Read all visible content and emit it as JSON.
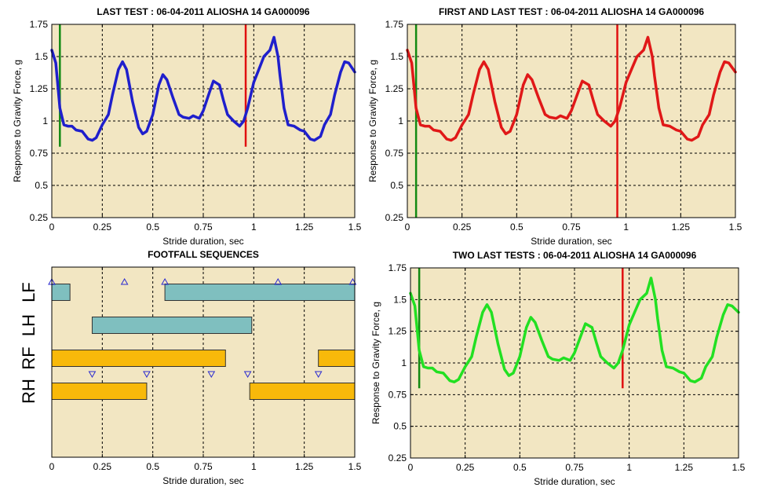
{
  "chart_data": [
    {
      "type": "line",
      "title": "LAST TEST : 06-04-2011 ALIOSHA 14 GA000096",
      "xlabel": "Stride duration, sec",
      "ylabel": "Response to Gravity Force, g",
      "xlim": [
        0,
        1.5
      ],
      "ylim": [
        0.25,
        1.75
      ],
      "xticks": [
        "0",
        "0.25",
        "0.5",
        "0.75",
        "1",
        "1.25",
        "1.5"
      ],
      "yticks": [
        "0.25",
        "0.5",
        "0.75",
        "1",
        "1.25",
        "1.5",
        "1.75"
      ],
      "grid": true,
      "background": "#f2e6c2",
      "series": [
        {
          "color": "#1f1fcc",
          "x": [
            0,
            0.02,
            0.04,
            0.06,
            0.08,
            0.1,
            0.12,
            0.15,
            0.18,
            0.2,
            0.22,
            0.25,
            0.28,
            0.3,
            0.33,
            0.35,
            0.37,
            0.4,
            0.43,
            0.45,
            0.47,
            0.5,
            0.53,
            0.55,
            0.57,
            0.6,
            0.63,
            0.65,
            0.68,
            0.7,
            0.73,
            0.75,
            0.78,
            0.8,
            0.83,
            0.85,
            0.87,
            0.9,
            0.93,
            0.95,
            0.97,
            1,
            1.03,
            1.05,
            1.08,
            1.1,
            1.12,
            1.13,
            1.15,
            1.17,
            1.2,
            1.23,
            1.25,
            1.28,
            1.3,
            1.33,
            1.35,
            1.38,
            1.4,
            1.43,
            1.45,
            1.47,
            1.5
          ],
          "y": [
            1.55,
            1.45,
            1.1,
            0.97,
            0.96,
            0.96,
            0.93,
            0.92,
            0.86,
            0.85,
            0.87,
            0.97,
            1.05,
            1.2,
            1.4,
            1.46,
            1.4,
            1.15,
            0.95,
            0.9,
            0.92,
            1.05,
            1.28,
            1.36,
            1.32,
            1.18,
            1.05,
            1.03,
            1.02,
            1.04,
            1.02,
            1.08,
            1.22,
            1.31,
            1.28,
            1.16,
            1.05,
            1.0,
            0.96,
            1.0,
            1.1,
            1.3,
            1.42,
            1.5,
            1.55,
            1.65,
            1.5,
            1.35,
            1.1,
            0.97,
            0.96,
            0.93,
            0.92,
            0.86,
            0.85,
            0.88,
            0.97,
            1.05,
            1.2,
            1.38,
            1.46,
            1.45,
            1.38
          ]
        }
      ],
      "markers": [
        {
          "x": 0.04,
          "y_range": [
            0.8,
            1.75
          ],
          "color": "#128a12"
        },
        {
          "x": 0.96,
          "y_range": [
            0.8,
            1.75
          ],
          "color": "#e01010"
        }
      ]
    },
    {
      "type": "line",
      "title": "FIRST AND LAST TEST : 06-04-2011 ALIOSHA 14 GA000096",
      "xlabel": "Stride duration, sec",
      "ylabel": "Response to Gravity Force, g",
      "xlim": [
        0,
        1.5
      ],
      "ylim": [
        0.25,
        1.75
      ],
      "xticks": [
        "0",
        "0.25",
        "0.5",
        "0.75",
        "1",
        "1.25",
        "1.5"
      ],
      "yticks": [
        "0.25",
        "0.5",
        "0.75",
        "1",
        "1.25",
        "1.5",
        "1.75"
      ],
      "grid": true,
      "background": "#f2e6c2",
      "series": [
        {
          "color": "#e01818",
          "x": [
            0,
            0.02,
            0.04,
            0.06,
            0.08,
            0.1,
            0.12,
            0.15,
            0.18,
            0.2,
            0.22,
            0.25,
            0.28,
            0.3,
            0.33,
            0.35,
            0.37,
            0.4,
            0.43,
            0.45,
            0.47,
            0.5,
            0.53,
            0.55,
            0.57,
            0.6,
            0.63,
            0.65,
            0.68,
            0.7,
            0.73,
            0.75,
            0.78,
            0.8,
            0.83,
            0.85,
            0.87,
            0.9,
            0.93,
            0.95,
            0.97,
            1,
            1.03,
            1.05,
            1.08,
            1.1,
            1.12,
            1.13,
            1.15,
            1.17,
            1.2,
            1.23,
            1.25,
            1.28,
            1.3,
            1.33,
            1.35,
            1.38,
            1.4,
            1.43,
            1.45,
            1.47,
            1.5
          ],
          "y": [
            1.55,
            1.45,
            1.1,
            0.97,
            0.96,
            0.96,
            0.93,
            0.92,
            0.86,
            0.85,
            0.87,
            0.97,
            1.05,
            1.2,
            1.4,
            1.46,
            1.4,
            1.15,
            0.95,
            0.9,
            0.92,
            1.05,
            1.28,
            1.36,
            1.32,
            1.18,
            1.05,
            1.03,
            1.02,
            1.04,
            1.02,
            1.08,
            1.22,
            1.31,
            1.28,
            1.16,
            1.05,
            1.0,
            0.96,
            1.0,
            1.1,
            1.3,
            1.42,
            1.5,
            1.55,
            1.65,
            1.5,
            1.35,
            1.1,
            0.97,
            0.96,
            0.93,
            0.92,
            0.86,
            0.85,
            0.88,
            0.97,
            1.05,
            1.2,
            1.38,
            1.46,
            1.45,
            1.38
          ]
        }
      ],
      "markers": [
        {
          "x": 0.04,
          "y_range": [
            0.25,
            1.75
          ],
          "color": "#128a12"
        },
        {
          "x": 0.96,
          "y_range": [
            0.25,
            1.75
          ],
          "color": "#e01010"
        }
      ]
    },
    {
      "type": "gantt",
      "title": "FOOTFALL SEQUENCES",
      "xlabel": "Stride duration, sec",
      "xlim": [
        0,
        1.5
      ],
      "xticks": [
        "0",
        "0.25",
        "0.5",
        "0.75",
        "1",
        "1.25",
        "1.5"
      ],
      "grid": true,
      "background": "#f2e6c2",
      "rows": [
        {
          "label": "LF",
          "bars": [
            [
              0,
              0.09
            ],
            [
              0.56,
              1.5
            ]
          ],
          "color": "#7fbfbf"
        },
        {
          "label": "LH",
          "bars": [
            [
              0.2,
              0.99
            ]
          ],
          "color": "#7fbfbf"
        },
        {
          "label": "RF",
          "bars": [
            [
              0,
              0.86
            ],
            [
              1.32,
              1.5
            ]
          ],
          "color": "#f8b90a"
        },
        {
          "label": "RH",
          "bars": [
            [
              0,
              0.47
            ],
            [
              0.98,
              1.5
            ]
          ],
          "color": "#f8b90a"
        }
      ],
      "markers_up": [
        0.0,
        0.36,
        0.56,
        1.12,
        1.49
      ],
      "markers_down": [
        0.2,
        0.47,
        0.79,
        0.97,
        1.32
      ]
    },
    {
      "type": "line",
      "title": "TWO LAST TESTS : 06-04-2011 ALIOSHA 14 GA000096",
      "xlabel": "Stride duration, sec",
      "ylabel": "Response to Gravity Force, g",
      "xlim": [
        0,
        1.5
      ],
      "ylim": [
        0.25,
        1.75
      ],
      "xticks": [
        "0",
        "0.25",
        "0.5",
        "0.75",
        "1",
        "1.25",
        "1.5"
      ],
      "yticks": [
        "0.25",
        "0.5",
        "0.75",
        "1",
        "1.25",
        "1.5",
        "1.75"
      ],
      "grid": true,
      "background": "#f2e6c2",
      "series": [
        {
          "color": "#22e022",
          "x": [
            0,
            0.02,
            0.04,
            0.06,
            0.08,
            0.1,
            0.12,
            0.15,
            0.18,
            0.2,
            0.22,
            0.25,
            0.28,
            0.3,
            0.33,
            0.35,
            0.37,
            0.4,
            0.43,
            0.45,
            0.47,
            0.5,
            0.53,
            0.55,
            0.57,
            0.6,
            0.63,
            0.65,
            0.68,
            0.7,
            0.73,
            0.75,
            0.78,
            0.8,
            0.83,
            0.85,
            0.87,
            0.9,
            0.93,
            0.95,
            0.97,
            1,
            1.03,
            1.05,
            1.08,
            1.1,
            1.12,
            1.13,
            1.15,
            1.17,
            1.2,
            1.23,
            1.25,
            1.28,
            1.3,
            1.33,
            1.35,
            1.38,
            1.4,
            1.43,
            1.45,
            1.47,
            1.5
          ],
          "y": [
            1.55,
            1.45,
            1.1,
            0.97,
            0.96,
            0.96,
            0.93,
            0.92,
            0.86,
            0.85,
            0.87,
            0.97,
            1.05,
            1.2,
            1.4,
            1.46,
            1.4,
            1.15,
            0.95,
            0.9,
            0.92,
            1.05,
            1.28,
            1.36,
            1.32,
            1.18,
            1.05,
            1.03,
            1.02,
            1.04,
            1.02,
            1.08,
            1.22,
            1.31,
            1.28,
            1.16,
            1.05,
            1.0,
            0.96,
            1.0,
            1.1,
            1.3,
            1.42,
            1.5,
            1.55,
            1.67,
            1.5,
            1.35,
            1.1,
            0.97,
            0.96,
            0.93,
            0.92,
            0.86,
            0.85,
            0.88,
            0.97,
            1.05,
            1.2,
            1.38,
            1.46,
            1.45,
            1.4
          ]
        }
      ],
      "markers": [
        {
          "x": 0.04,
          "y_range": [
            0.8,
            1.75
          ],
          "color": "#128a12"
        },
        {
          "x": 0.97,
          "y_range": [
            0.8,
            1.75
          ],
          "color": "#e01010"
        }
      ]
    }
  ]
}
